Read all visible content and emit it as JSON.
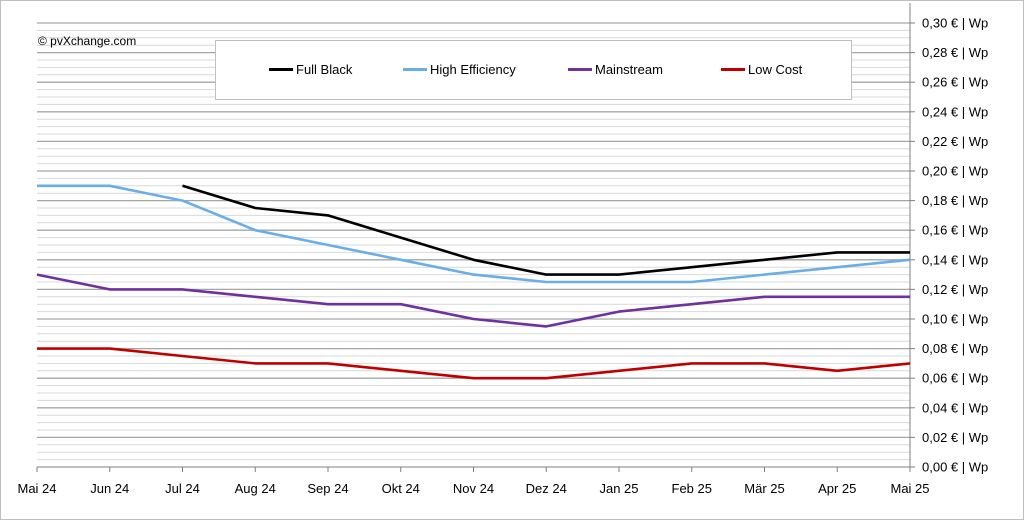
{
  "copyright": "© pvXchange.com",
  "chart_data": {
    "type": "line",
    "categories": [
      "Mai 24",
      "Jun 24",
      "Jul 24",
      "Aug 24",
      "Sep 24",
      "Okt 24",
      "Nov 24",
      "Dez 24",
      "Jan 25",
      "Feb 25",
      "Mär 25",
      "Apr 25",
      "Mai 25"
    ],
    "ylim": [
      0,
      0.3
    ],
    "y_major_step": 0.02,
    "y_minor_step": 0.005,
    "y_axis_position": "right",
    "y_tick_labels": [
      "0,00 € | Wp",
      "0,02 € | Wp",
      "0,04 € | Wp",
      "0,06 € | Wp",
      "0,08 € | Wp",
      "0,10 € | Wp",
      "0,12 € | Wp",
      "0,14 € | Wp",
      "0,16 € | Wp",
      "0,18 € | Wp",
      "0,20 € | Wp",
      "0,22 € | Wp",
      "0,24 € | Wp",
      "0,26 € | Wp",
      "0,28 € | Wp",
      "0,30 € | Wp"
    ],
    "grid": true,
    "legend_position": "top-center",
    "series": [
      {
        "name": "Full Black",
        "color": "#000000",
        "values": [
          null,
          null,
          0.19,
          0.175,
          0.17,
          0.155,
          0.14,
          0.13,
          0.13,
          0.135,
          0.14,
          0.145,
          0.145
        ]
      },
      {
        "name": "High Efficiency",
        "color": "#6aaee8",
        "values": [
          0.19,
          0.19,
          0.18,
          0.16,
          0.15,
          0.14,
          0.13,
          0.125,
          0.125,
          0.125,
          0.13,
          0.135,
          0.14
        ]
      },
      {
        "name": "Mainstream",
        "color": "#7030a0",
        "values": [
          0.13,
          0.12,
          0.12,
          0.115,
          0.11,
          0.11,
          0.1,
          0.095,
          0.105,
          0.11,
          0.115,
          0.115,
          0.115
        ]
      },
      {
        "name": "Low Cost",
        "color": "#c00000",
        "values": [
          0.08,
          0.08,
          0.075,
          0.07,
          0.07,
          0.065,
          0.06,
          0.06,
          0.065,
          0.07,
          0.07,
          0.065,
          0.07
        ]
      }
    ]
  }
}
